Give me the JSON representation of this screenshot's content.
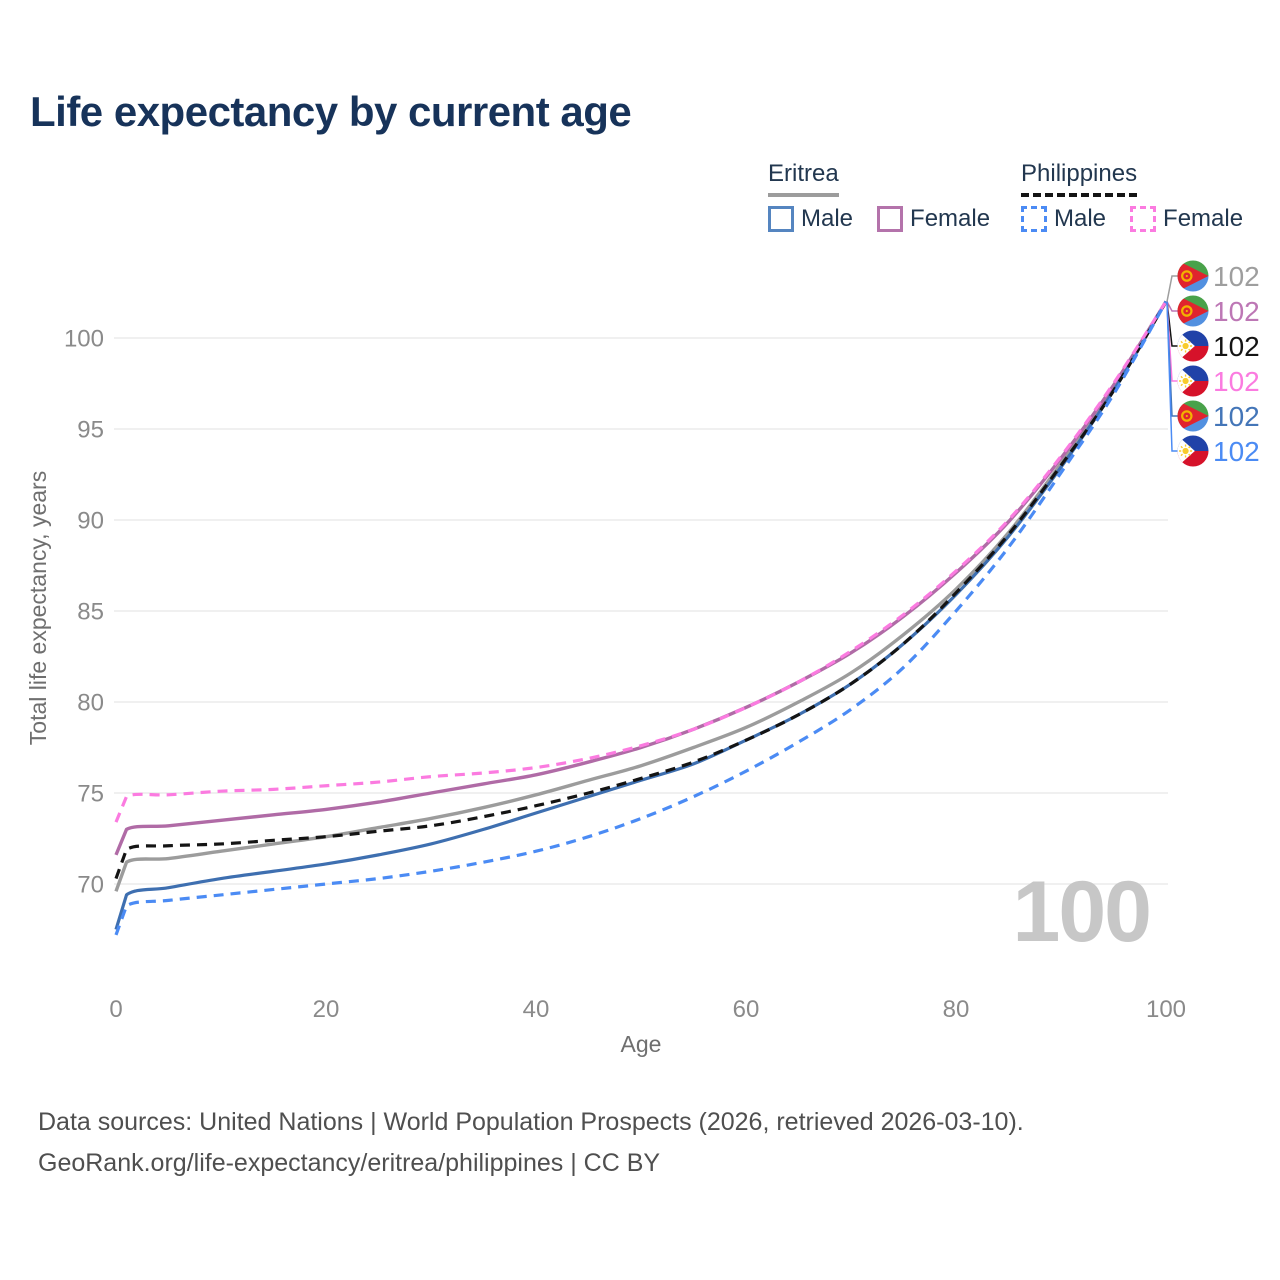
{
  "page": {
    "title": "Life expectancy by current age"
  },
  "legend": {
    "groups": [
      {
        "id": "eritrea",
        "label": "Eritrea",
        "line_style": "solid",
        "line_color": "#9c9c9c",
        "items": [
          {
            "id": "eritrea_male",
            "label": "Male",
            "color": "#5585c0",
            "line_style": "solid"
          },
          {
            "id": "eritrea_female",
            "label": "Female",
            "color": "#b473ab",
            "line_style": "solid"
          }
        ]
      },
      {
        "id": "philippines",
        "label": "Philippines",
        "line_style": "dashed",
        "line_color": "#141414",
        "items": [
          {
            "id": "philippines_male",
            "label": "Male",
            "color": "#4b8bf4",
            "line_style": "dashed"
          },
          {
            "id": "philippines_female",
            "label": "Female",
            "color": "#fb7be0",
            "line_style": "dashed"
          }
        ]
      }
    ]
  },
  "chart_data": {
    "type": "line",
    "title": "Life expectancy by current age",
    "xlabel": "Age",
    "ylabel": "Total life expectancy, years",
    "xlim": [
      0,
      100
    ],
    "ylim": [
      66.5,
      103
    ],
    "xticks": [
      0,
      20,
      40,
      60,
      80,
      100
    ],
    "yticks": [
      70,
      75,
      80,
      85,
      90,
      95,
      100
    ],
    "grid": "horizontal-only",
    "legend_position": "top-right",
    "age_watermark": "100",
    "x": [
      0,
      1,
      5,
      10,
      15,
      20,
      25,
      30,
      35,
      40,
      45,
      50,
      55,
      60,
      65,
      70,
      75,
      80,
      85,
      90,
      95,
      100
    ],
    "series": [
      {
        "id": "eritrea_both",
        "name": "Eritrea — Both sexes",
        "country": "Eritrea",
        "sex": "Both",
        "color": "#9c9c9c",
        "line_style": "solid",
        "width": 3.4,
        "values": [
          69.6,
          71.2,
          71.4,
          71.8,
          72.2,
          72.6,
          73.1,
          73.6,
          74.2,
          74.9,
          75.7,
          76.5,
          77.5,
          78.6,
          80.0,
          81.6,
          83.7,
          86.2,
          89.3,
          93.1,
          97.2,
          102
        ]
      },
      {
        "id": "eritrea_female",
        "name": "Eritrea — Female",
        "country": "Eritrea",
        "sex": "Female",
        "color": "#b06ba6",
        "line_style": "solid",
        "width": 3.4,
        "values": [
          71.6,
          73.0,
          73.2,
          73.5,
          73.8,
          74.1,
          74.5,
          75.0,
          75.5,
          76.0,
          76.7,
          77.5,
          78.5,
          79.7,
          81.1,
          82.7,
          84.7,
          87.1,
          89.9,
          93.4,
          97.4,
          102
        ]
      },
      {
        "id": "eritrea_male",
        "name": "Eritrea — Male",
        "country": "Eritrea",
        "sex": "Male",
        "color": "#3e6fb0",
        "line_style": "solid",
        "width": 3.2,
        "values": [
          67.5,
          69.4,
          69.8,
          70.3,
          70.7,
          71.1,
          71.6,
          72.2,
          73.0,
          73.9,
          74.8,
          75.7,
          76.6,
          77.9,
          79.3,
          81.0,
          83.2,
          85.9,
          89.1,
          92.9,
          97.1,
          102
        ]
      },
      {
        "id": "philippines_both",
        "name": "Philippines — Both sexes",
        "country": "Philippines",
        "sex": "Both",
        "color": "#141414",
        "line_style": "dashed",
        "width": 3.2,
        "values": [
          70.3,
          71.9,
          72.1,
          72.2,
          72.4,
          72.6,
          72.9,
          73.2,
          73.7,
          74.3,
          75.0,
          75.8,
          76.7,
          77.9,
          79.3,
          81.0,
          83.2,
          86.0,
          89.2,
          93.0,
          97.1,
          102
        ]
      },
      {
        "id": "philippines_female",
        "name": "Philippines — Female",
        "country": "Philippines",
        "sex": "Female",
        "color": "#fb7be0",
        "line_style": "dashed",
        "width": 3.2,
        "values": [
          73.4,
          74.8,
          74.9,
          75.1,
          75.2,
          75.4,
          75.6,
          75.9,
          76.1,
          76.4,
          76.9,
          77.6,
          78.5,
          79.7,
          81.1,
          82.8,
          84.8,
          87.2,
          90.0,
          93.5,
          97.5,
          102
        ]
      },
      {
        "id": "philippines_male",
        "name": "Philippines — Male",
        "country": "Philippines",
        "sex": "Male",
        "color": "#4b8bf4",
        "line_style": "dashed",
        "width": 3.2,
        "values": [
          67.2,
          68.8,
          69.1,
          69.4,
          69.7,
          70.0,
          70.3,
          70.7,
          71.2,
          71.8,
          72.6,
          73.6,
          74.8,
          76.2,
          77.8,
          79.6,
          81.9,
          85.0,
          88.5,
          92.6,
          96.9,
          102
        ]
      }
    ],
    "end_labels": [
      {
        "series": "eritrea_both",
        "flag": "eritrea",
        "value": "102",
        "color": "#9e9e9e"
      },
      {
        "series": "eritrea_female",
        "flag": "eritrea",
        "value": "102",
        "color": "#bd77b5"
      },
      {
        "series": "philippines_both",
        "flag": "philippines",
        "value": "102",
        "color": "#141414"
      },
      {
        "series": "philippines_female",
        "flag": "philippines",
        "value": "102",
        "color": "#fb7be0"
      },
      {
        "series": "eritrea_male",
        "flag": "eritrea",
        "value": "102",
        "color": "#4476b8"
      },
      {
        "series": "philippines_male",
        "flag": "philippines",
        "value": "102",
        "color": "#4b8bf4"
      }
    ]
  },
  "sources": {
    "line1": "Data sources: United Nations | World Population Prospects (2026, retrieved 2026-03-10).",
    "line2": "GeoRank.org/life-expectancy/eritrea/philippines | CC BY"
  },
  "icons": {
    "eritrea-flag": {
      "green": "#49a24a",
      "blue": "#5290e0",
      "red": "#e0242e",
      "gold": "#f2b300"
    },
    "philippines-flag": {
      "blue": "#2042a8",
      "red": "#d6122a",
      "white": "#ffffff",
      "sun": "#f8cc2c"
    }
  }
}
